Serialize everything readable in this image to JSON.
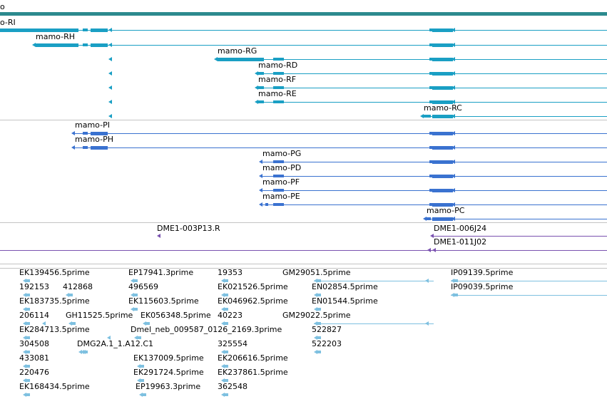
{
  "top_label": "o",
  "colors": {
    "cdna": "#1a9fc4",
    "protein": "#3a72d0",
    "clone": "#7a52b0",
    "est": "#7ec0e0",
    "separator": "#c4c4c4",
    "topbar": "#2c8a8e"
  },
  "transcripts": [
    {
      "name": "o-RI"
    },
    {
      "name": "mamo-RH"
    },
    {
      "name": "mamo-RG"
    },
    {
      "name": "mamo-RD"
    },
    {
      "name": "mamo-RF"
    },
    {
      "name": "mamo-RE"
    },
    {
      "name": "mamo-RC"
    }
  ],
  "proteins": [
    {
      "name": "mamo-PI"
    },
    {
      "name": "mamo-PH"
    },
    {
      "name": "mamo-PG"
    },
    {
      "name": "mamo-PD"
    },
    {
      "name": "mamo-PF"
    },
    {
      "name": "mamo-PE"
    },
    {
      "name": "mamo-PC"
    }
  ],
  "clones": [
    {
      "name": "DME1-003P13.R"
    },
    {
      "name": "DME1-006J24"
    },
    {
      "name": "DME1-011J02"
    }
  ],
  "ests": [
    {
      "name": "EK139456.5prime"
    },
    {
      "name": "192153"
    },
    {
      "name": "412868"
    },
    {
      "name": "EK183735.5prime"
    },
    {
      "name": "206114"
    },
    {
      "name": "GH11525.5prime"
    },
    {
      "name": "EK284713.5prime"
    },
    {
      "name": "304508"
    },
    {
      "name": "DMG2A.1_1.A12.C1"
    },
    {
      "name": "433081"
    },
    {
      "name": "220476"
    },
    {
      "name": "EK168434.5prime"
    },
    {
      "name": "EP17941.3prime"
    },
    {
      "name": "496569"
    },
    {
      "name": "EK115603.5prime"
    },
    {
      "name": "EK056348.5prime"
    },
    {
      "name": "Dmel_neb_009587_0126_2169.3prime"
    },
    {
      "name": "EK137009.5prime"
    },
    {
      "name": "EK291724.5prime"
    },
    {
      "name": "EP19963.3prime"
    },
    {
      "name": "19353"
    },
    {
      "name": "EK021526.5prime"
    },
    {
      "name": "EK046962.5prime"
    },
    {
      "name": "40223"
    },
    {
      "name": "325554"
    },
    {
      "name": "EK206616.5prime"
    },
    {
      "name": "EK237861.5prime"
    },
    {
      "name": "362548"
    },
    {
      "name": "GM29051.5prime"
    },
    {
      "name": "EN02854.5prime"
    },
    {
      "name": "EN01544.5prime"
    },
    {
      "name": "GM29022.5prime"
    },
    {
      "name": "522827"
    },
    {
      "name": "522203"
    },
    {
      "name": "IP09139.5prime"
    },
    {
      "name": "IP09039.5prime"
    }
  ]
}
